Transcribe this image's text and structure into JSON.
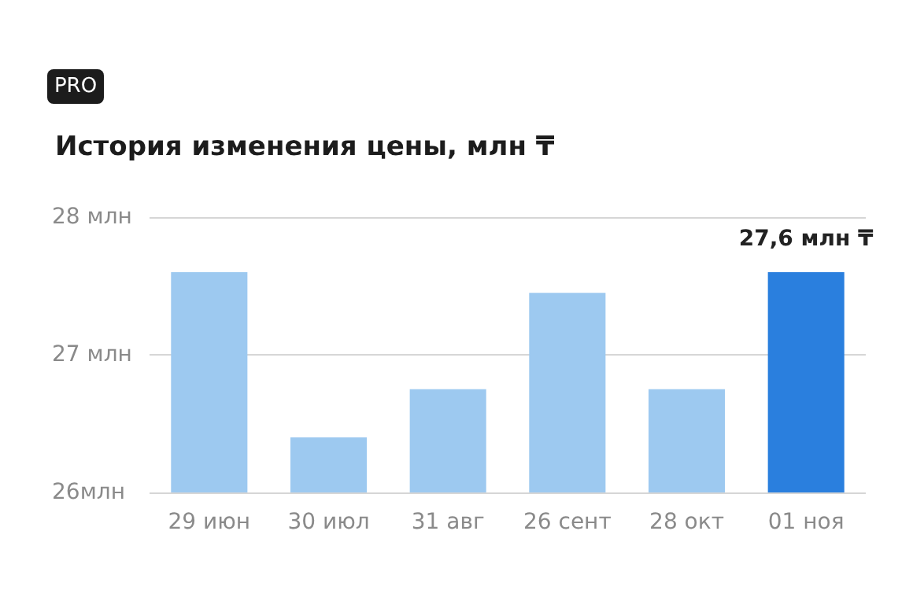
{
  "chart_data": {
    "type": "bar",
    "title": "История изменения цены, млн ₸",
    "annotations": [
      "PRO"
    ],
    "categories": [
      "29 июн",
      "30 июл",
      "31 авг",
      "26 сент",
      "28 окт",
      "01 ноя"
    ],
    "values": [
      27.6,
      26.4,
      26.75,
      27.45,
      26.75,
      27.6
    ],
    "colors": [
      "#9dc9f0",
      "#9dc9f0",
      "#9dc9f0",
      "#9dc9f0",
      "#9dc9f0",
      "#2a7fde"
    ],
    "value_labels": [
      null,
      null,
      null,
      null,
      null,
      "27,6 млн ₸"
    ],
    "ylim": [
      26,
      28
    ],
    "yticks": [
      {
        "value": 26,
        "label": "26млн"
      },
      {
        "value": 27,
        "label": "27 млн"
      },
      {
        "value": 28,
        "label": "28 млн"
      }
    ],
    "grid": "y"
  }
}
